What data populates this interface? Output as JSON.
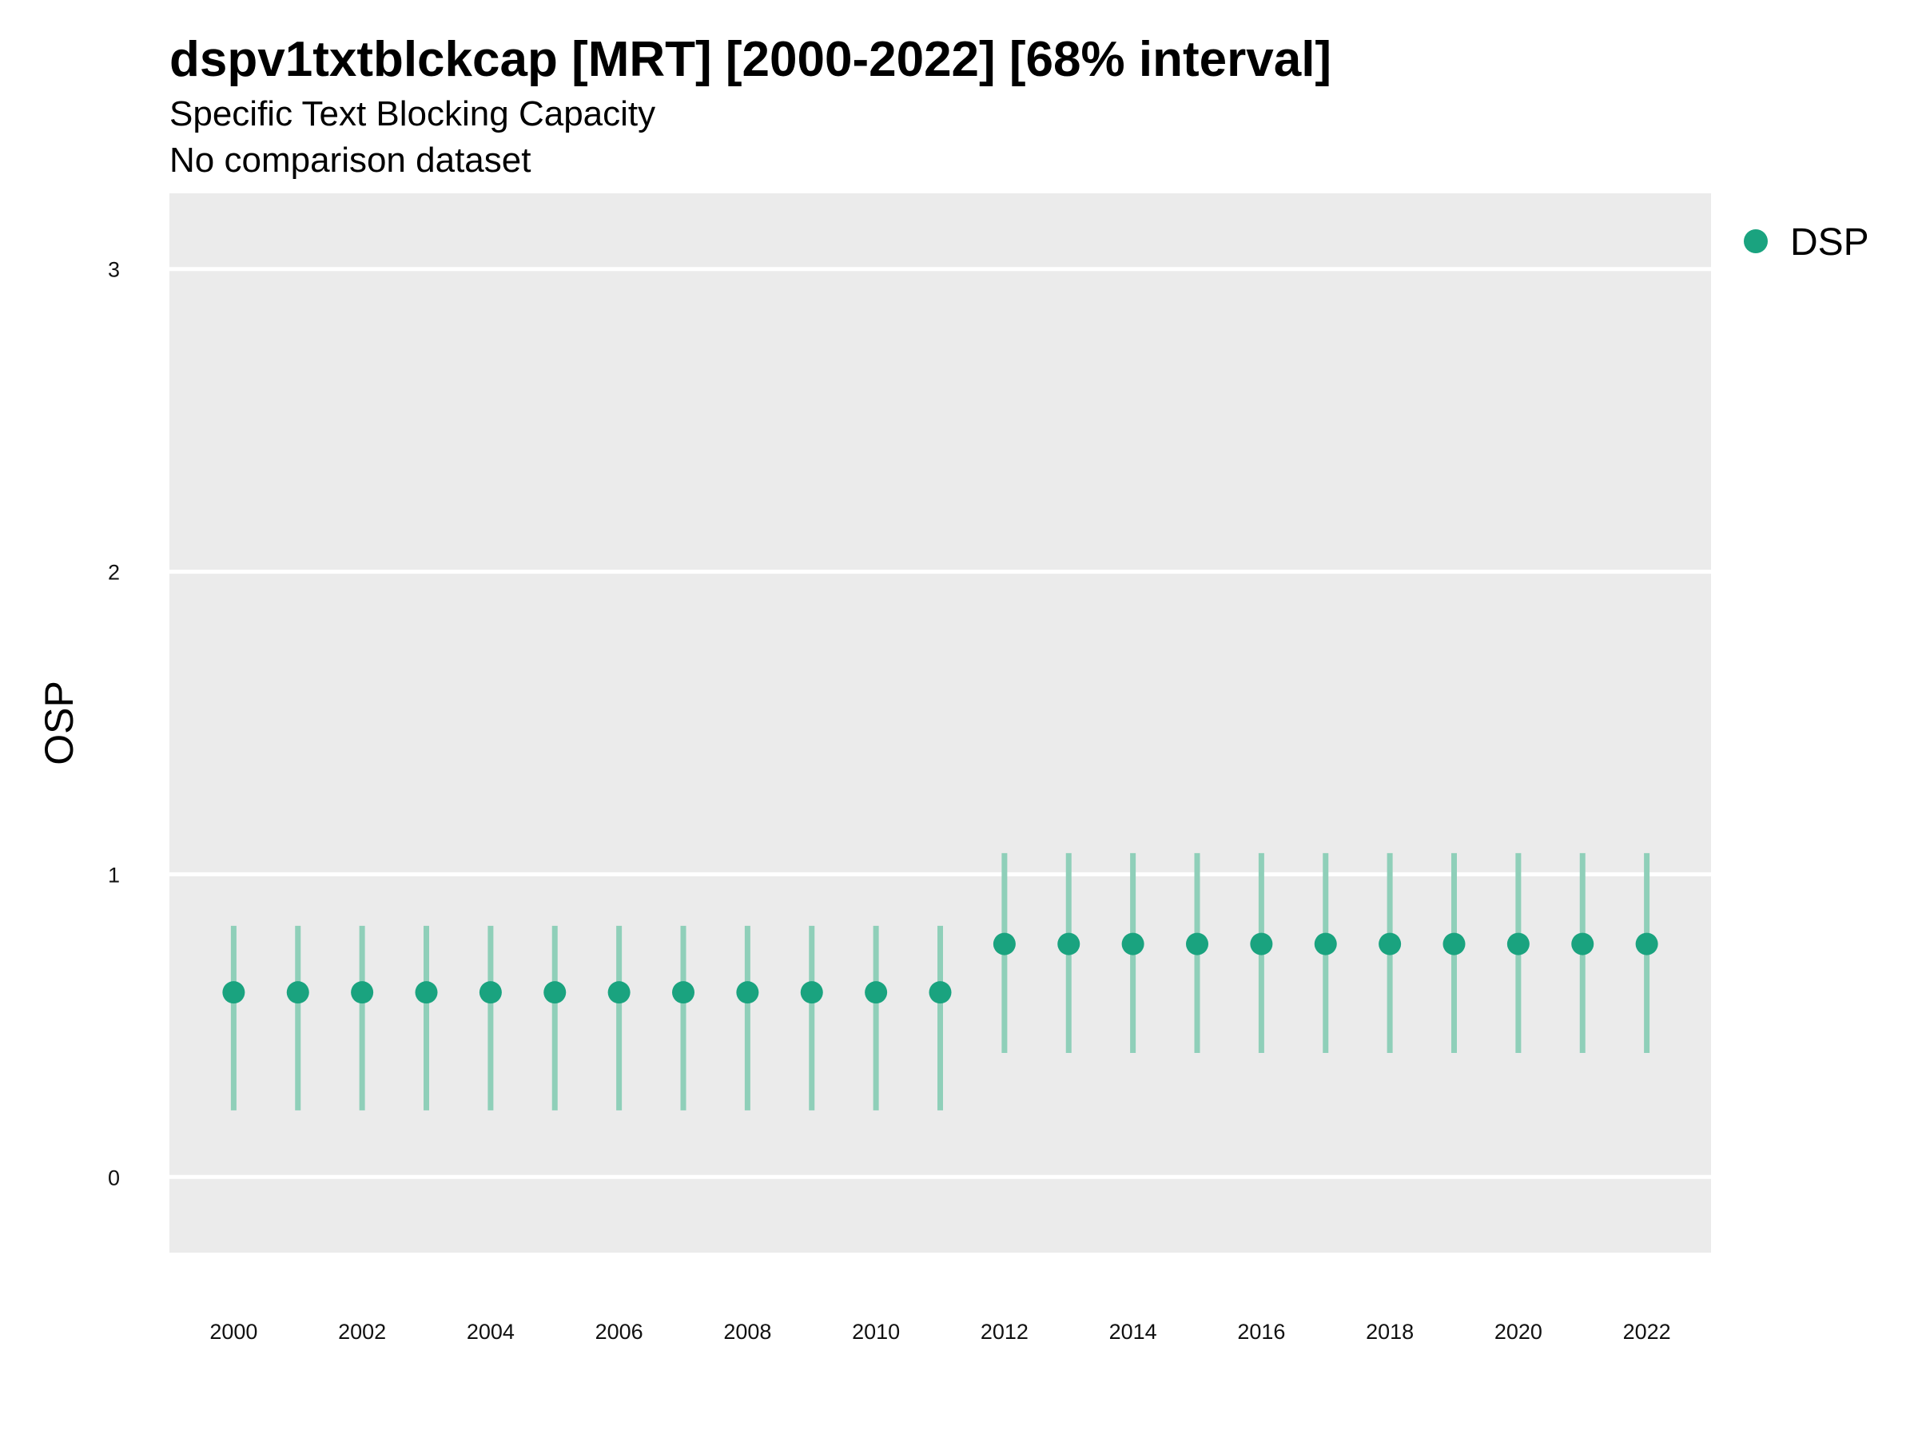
{
  "chart_data": {
    "type": "scatter",
    "title": "dspv1txtblckcap [MRT] [2000-2022] [68% interval]",
    "subtitle": "Specific Text Blocking Capacity",
    "subtitle2": "No comparison dataset",
    "xlabel": "",
    "ylabel": "OSP",
    "ylim": [
      -0.25,
      3.25
    ],
    "xlim": [
      1999,
      2023
    ],
    "yticks": [
      0,
      1,
      2,
      3
    ],
    "xticks": [
      2000,
      2002,
      2004,
      2006,
      2008,
      2010,
      2012,
      2014,
      2016,
      2018,
      2020,
      2022
    ],
    "grid": true,
    "legend_position": "top-right",
    "colors": {
      "point": "#1aa37f",
      "interval": "#8fcfb9",
      "panel": "#ebebeb",
      "grid": "#ffffff"
    },
    "series": [
      {
        "name": "DSP",
        "x": [
          2000,
          2001,
          2002,
          2003,
          2004,
          2005,
          2006,
          2007,
          2008,
          2009,
          2010,
          2011,
          2012,
          2013,
          2014,
          2015,
          2016,
          2017,
          2018,
          2019,
          2020,
          2021,
          2022
        ],
        "y": [
          0.61,
          0.61,
          0.61,
          0.61,
          0.61,
          0.61,
          0.61,
          0.61,
          0.61,
          0.61,
          0.61,
          0.61,
          0.77,
          0.77,
          0.77,
          0.77,
          0.77,
          0.77,
          0.77,
          0.77,
          0.77,
          0.77,
          0.77
        ],
        "lower": [
          0.22,
          0.22,
          0.22,
          0.22,
          0.22,
          0.22,
          0.22,
          0.22,
          0.22,
          0.22,
          0.22,
          0.22,
          0.41,
          0.41,
          0.41,
          0.41,
          0.41,
          0.41,
          0.41,
          0.41,
          0.41,
          0.41,
          0.41
        ],
        "upper": [
          0.83,
          0.83,
          0.83,
          0.83,
          0.83,
          0.83,
          0.83,
          0.83,
          0.83,
          0.83,
          0.83,
          0.83,
          1.07,
          1.07,
          1.07,
          1.07,
          1.07,
          1.07,
          1.07,
          1.07,
          1.07,
          1.07,
          1.07
        ]
      }
    ]
  }
}
